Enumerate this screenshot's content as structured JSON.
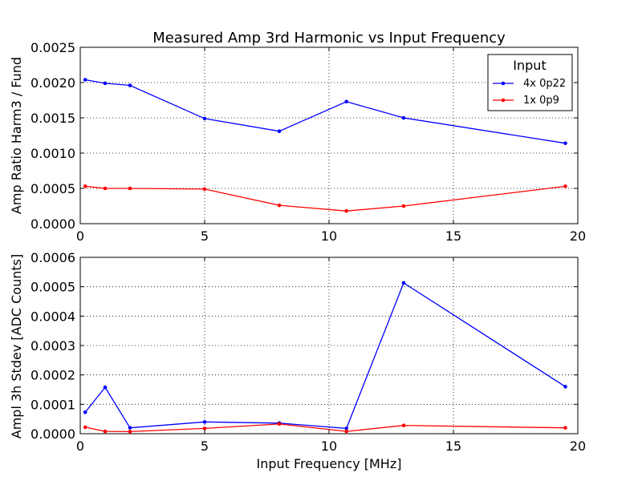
{
  "figure": {
    "title": "Measured Amp 3rd Harmonic vs Input Frequency",
    "xlabel": "Input Frequency [MHz]"
  },
  "legend": {
    "title": "Input",
    "placement": "top-right",
    "entries": [
      {
        "label": "4x 0p22",
        "color": "#0000ff"
      },
      {
        "label": "1x 0p9",
        "color": "#ff0000"
      }
    ]
  },
  "chart_data": [
    {
      "type": "line",
      "title": "Measured Amp 3rd Harmonic vs Input Frequency",
      "xlabel": "",
      "ylabel": "Amp Ratio Harm3 / Fund",
      "xlim": [
        0,
        20
      ],
      "ylim": [
        0,
        0.0025
      ],
      "grid": true,
      "x_ticks": [
        0,
        5,
        10,
        15,
        20
      ],
      "x_tick_labels": [
        "0",
        "5",
        "10",
        "15",
        "20"
      ],
      "y_ticks": [
        0,
        0.0005,
        0.001,
        0.0015,
        0.002,
        0.0025
      ],
      "y_tick_labels": [
        "0.0000",
        "0.0005",
        "0.0010",
        "0.0015",
        "0.0020",
        "0.0025"
      ],
      "x": [
        0.2,
        1.0,
        2.0,
        5.0,
        8.0,
        10.7,
        13.0,
        19.5
      ],
      "series": [
        {
          "name": "4x 0p22",
          "color": "#0000ff",
          "values": [
            0.00204,
            0.00199,
            0.00196,
            0.00149,
            0.00131,
            0.00173,
            0.0015,
            0.00114
          ]
        },
        {
          "name": "1x 0p9",
          "color": "#ff0000",
          "values": [
            0.00053,
            0.0005,
            0.0005,
            0.00049,
            0.00026,
            0.00018,
            0.00025,
            0.00053
          ]
        }
      ]
    },
    {
      "type": "line",
      "title": "",
      "xlabel": "Input Frequency [MHz]",
      "ylabel": "Ampl 3h Stdev [ADC Counts]",
      "xlim": [
        0,
        20
      ],
      "ylim": [
        0,
        0.0006
      ],
      "grid": true,
      "x_ticks": [
        0,
        5,
        10,
        15,
        20
      ],
      "x_tick_labels": [
        "0",
        "5",
        "10",
        "15",
        "20"
      ],
      "y_ticks": [
        0,
        0.0001,
        0.0002,
        0.0003,
        0.0004,
        0.0005,
        0.0006
      ],
      "y_tick_labels": [
        "0.0000",
        "0.0001",
        "0.0002",
        "0.0003",
        "0.0004",
        "0.0005",
        "0.0006"
      ],
      "x": [
        0.2,
        1.0,
        2.0,
        5.0,
        8.0,
        10.7,
        13.0,
        19.5
      ],
      "series": [
        {
          "name": "4x 0p22",
          "color": "#0000ff",
          "values": [
            7.3e-05,
            0.000158,
            2e-05,
            4e-05,
            3.6e-05,
            1.8e-05,
            0.000513,
            0.00016
          ]
        },
        {
          "name": "1x 0p9",
          "color": "#ff0000",
          "values": [
            2.2e-05,
            8e-06,
            7e-06,
            1.8e-05,
            3.3e-05,
            8e-06,
            2.8e-05,
            2e-05
          ]
        }
      ]
    }
  ]
}
